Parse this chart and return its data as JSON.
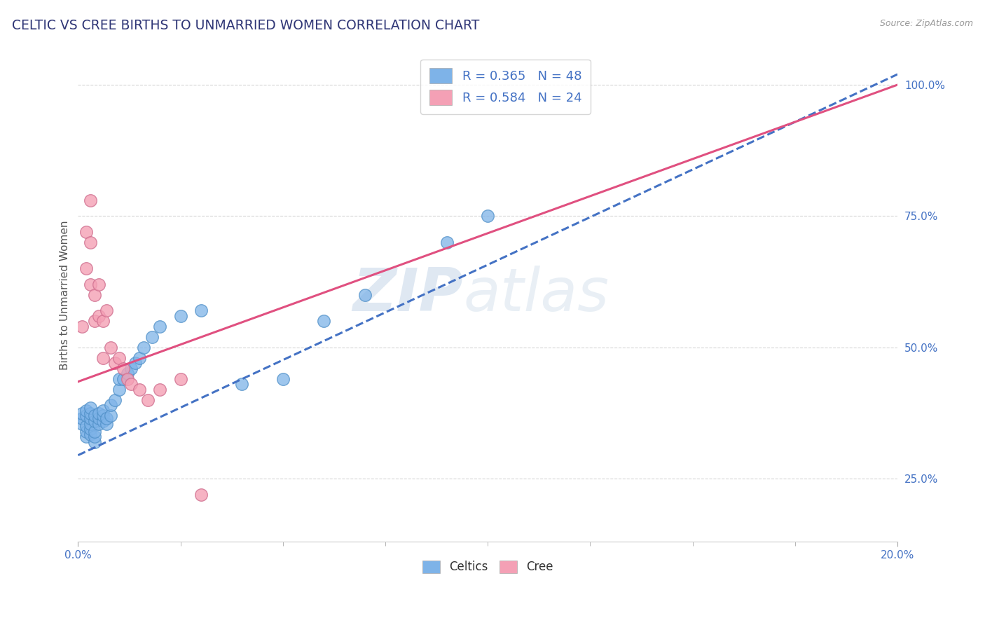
{
  "title": "CELTIC VS CREE BIRTHS TO UNMARRIED WOMEN CORRELATION CHART",
  "source": "Source: ZipAtlas.com",
  "ylabel": "Births to Unmarried Women",
  "xlim": [
    0.0,
    0.2
  ],
  "ylim": [
    0.13,
    1.07
  ],
  "xtick_positions": [
    0.0,
    0.2
  ],
  "xtick_labels": [
    "0.0%",
    "20.0%"
  ],
  "ytick_positions": [
    0.25,
    0.5,
    0.75,
    1.0
  ],
  "ytick_labels": [
    "25.0%",
    "50.0%",
    "75.0%",
    "100.0%"
  ],
  "celtics_color": "#7EB3E8",
  "celtics_edge_color": "#5090C8",
  "cree_color": "#F4A0B5",
  "cree_edge_color": "#D07090",
  "celtics_R": 0.365,
  "celtics_N": 48,
  "cree_R": 0.584,
  "cree_N": 24,
  "blue_line_color": "#4472C4",
  "pink_line_color": "#E05080",
  "celtics_x": [
    0.001,
    0.001,
    0.001,
    0.002,
    0.002,
    0.002,
    0.002,
    0.002,
    0.003,
    0.003,
    0.003,
    0.003,
    0.003,
    0.003,
    0.004,
    0.004,
    0.004,
    0.004,
    0.004,
    0.005,
    0.005,
    0.005,
    0.006,
    0.006,
    0.006,
    0.007,
    0.007,
    0.008,
    0.008,
    0.009,
    0.01,
    0.01,
    0.011,
    0.012,
    0.013,
    0.014,
    0.015,
    0.016,
    0.018,
    0.02,
    0.025,
    0.03,
    0.04,
    0.05,
    0.06,
    0.07,
    0.09,
    0.1
  ],
  "celtics_y": [
    0.355,
    0.365,
    0.375,
    0.33,
    0.34,
    0.35,
    0.37,
    0.38,
    0.335,
    0.345,
    0.355,
    0.365,
    0.375,
    0.385,
    0.32,
    0.33,
    0.34,
    0.36,
    0.37,
    0.355,
    0.365,
    0.375,
    0.36,
    0.37,
    0.38,
    0.355,
    0.365,
    0.37,
    0.39,
    0.4,
    0.42,
    0.44,
    0.44,
    0.45,
    0.46,
    0.47,
    0.48,
    0.5,
    0.52,
    0.54,
    0.56,
    0.57,
    0.43,
    0.44,
    0.55,
    0.6,
    0.7,
    0.75
  ],
  "cree_x": [
    0.001,
    0.002,
    0.002,
    0.003,
    0.003,
    0.003,
    0.004,
    0.004,
    0.005,
    0.005,
    0.006,
    0.006,
    0.007,
    0.008,
    0.009,
    0.01,
    0.011,
    0.012,
    0.013,
    0.015,
    0.017,
    0.02,
    0.025,
    0.03
  ],
  "cree_y": [
    0.54,
    0.65,
    0.72,
    0.62,
    0.7,
    0.78,
    0.55,
    0.6,
    0.56,
    0.62,
    0.48,
    0.55,
    0.57,
    0.5,
    0.47,
    0.48,
    0.46,
    0.44,
    0.43,
    0.42,
    0.4,
    0.42,
    0.44,
    0.22
  ],
  "watermark_zip": "ZIP",
  "watermark_atlas": "atlas",
  "title_color": "#2F3676",
  "axis_color": "#4472C4",
  "grid_color": "#CCCCCC",
  "title_fontsize": 13.5,
  "label_fontsize": 11,
  "tick_fontsize": 11,
  "legend_upper_fontsize": 13,
  "legend_lower_fontsize": 12
}
